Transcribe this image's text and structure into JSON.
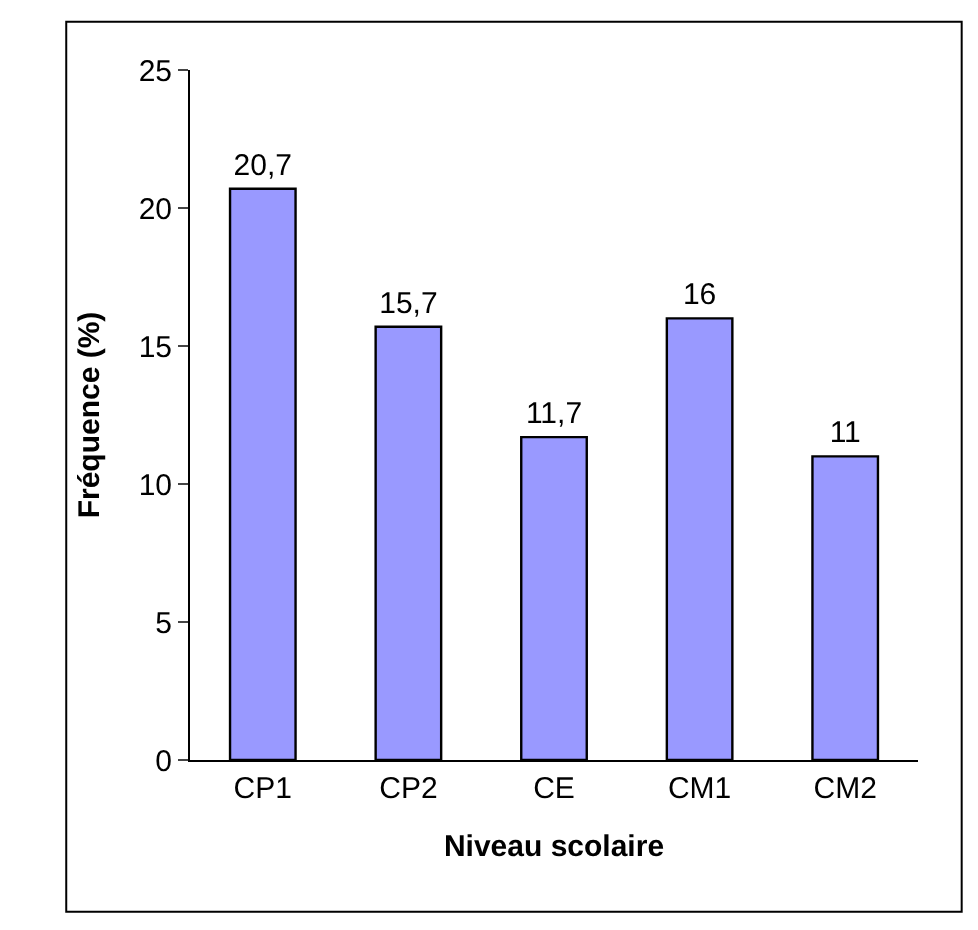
{
  "chart_data": {
    "type": "bar",
    "xlabel": "Niveau scolaire",
    "ylabel": "Fréquence (%)",
    "categories": [
      "CP1",
      "CP2",
      "CE",
      "CM1",
      "CM2"
    ],
    "values": [
      20.7,
      15.7,
      11.7,
      16,
      11
    ],
    "value_labels": [
      "20,7",
      "15,7",
      "11,7",
      "16",
      "11"
    ],
    "color": "#9999ff",
    "ylim": [
      0,
      25
    ],
    "yticks": [
      0,
      5,
      10,
      15,
      20,
      25
    ],
    "grid": false
  }
}
